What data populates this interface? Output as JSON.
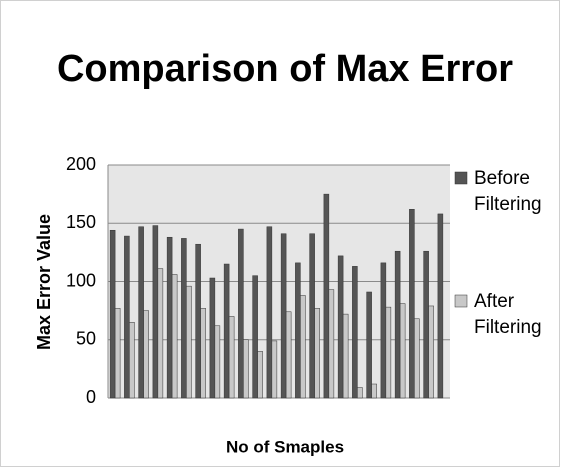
{
  "chart_data": {
    "type": "bar",
    "title": "Comparison of Max Error",
    "xlabel": "No of Smaples",
    "ylabel": "Max Error  Value",
    "categories": [
      null,
      null,
      null,
      null,
      null,
      null,
      null,
      null,
      null,
      null,
      null,
      null,
      null,
      null,
      null,
      null,
      null,
      null,
      null,
      null,
      null,
      null,
      null,
      null
    ],
    "series": [
      {
        "name": "Before Filtering",
        "color": "#555555",
        "values": [
          144,
          139,
          147,
          148,
          138,
          137,
          132,
          103,
          115,
          145,
          105,
          147,
          141,
          116,
          141,
          175,
          122,
          113,
          91,
          116,
          126,
          162,
          126,
          158
        ]
      },
      {
        "name": "After Filtering",
        "color": "#c8c8c8",
        "values": [
          77,
          65,
          75,
          111,
          106,
          96,
          77,
          62,
          70,
          50,
          40,
          49,
          74,
          88,
          77,
          93,
          72,
          9,
          12,
          78,
          81,
          68,
          79,
          null
        ]
      }
    ],
    "ylim": [
      0,
      200
    ],
    "yticks": [
      0,
      50,
      100,
      150,
      200
    ],
    "grid": true,
    "legend": "right"
  }
}
